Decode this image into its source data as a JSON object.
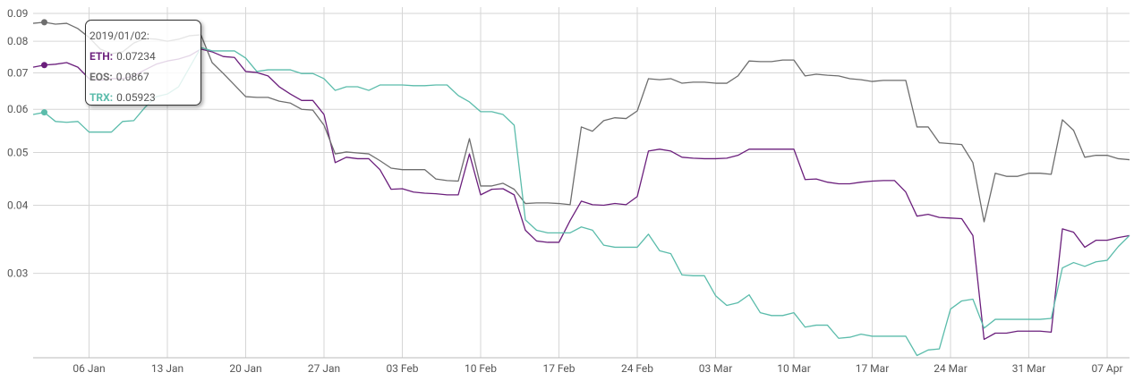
{
  "chart_data": {
    "type": "line",
    "log_scale": true,
    "grid": true,
    "x": [
      "2019/01/01",
      "2019/01/02",
      "2019/01/03",
      "2019/01/04",
      "2019/01/05",
      "2019/01/06",
      "2019/01/07",
      "2019/01/08",
      "2019/01/09",
      "2019/01/10",
      "2019/01/11",
      "2019/01/12",
      "2019/01/13",
      "2019/01/14",
      "2019/01/15",
      "2019/01/16",
      "2019/01/17",
      "2019/01/18",
      "2019/01/19",
      "2019/01/20",
      "2019/01/21",
      "2019/01/22",
      "2019/01/23",
      "2019/01/24",
      "2019/01/25",
      "2019/01/26",
      "2019/01/27",
      "2019/01/28",
      "2019/01/29",
      "2019/01/30",
      "2019/01/31",
      "2019/02/01",
      "2019/02/02",
      "2019/02/03",
      "2019/02/04",
      "2019/02/05",
      "2019/02/06",
      "2019/02/07",
      "2019/02/08",
      "2019/02/09",
      "2019/02/10",
      "2019/02/11",
      "2019/02/12",
      "2019/02/13",
      "2019/02/14",
      "2019/02/15",
      "2019/02/16",
      "2019/02/17",
      "2019/02/18",
      "2019/02/19",
      "2019/02/20",
      "2019/02/21",
      "2019/02/22",
      "2019/02/23",
      "2019/02/24",
      "2019/02/25",
      "2019/02/26",
      "2019/02/27",
      "2019/02/28",
      "2019/03/01",
      "2019/03/02",
      "2019/03/03",
      "2019/03/04",
      "2019/03/05",
      "2019/03/06",
      "2019/03/07",
      "2019/03/08",
      "2019/03/09",
      "2019/03/10",
      "2019/03/11",
      "2019/03/12",
      "2019/03/13",
      "2019/03/14",
      "2019/03/15",
      "2019/03/16",
      "2019/03/17",
      "2019/03/18",
      "2019/03/19",
      "2019/03/20",
      "2019/03/21",
      "2019/03/22",
      "2019/03/23",
      "2019/03/24",
      "2019/03/25",
      "2019/03/26",
      "2019/03/27",
      "2019/03/28",
      "2019/03/29",
      "2019/03/30",
      "2019/03/31",
      "2019/04/01",
      "2019/04/02",
      "2019/04/03",
      "2019/04/04",
      "2019/04/05",
      "2019/04/06",
      "2019/04/07",
      "2019/04/08",
      "2019/04/09"
    ],
    "xticks": [
      {
        "value": "2019/01/06",
        "label": "06 Jan"
      },
      {
        "value": "2019/01/13",
        "label": "13 Jan"
      },
      {
        "value": "2019/01/20",
        "label": "20 Jan"
      },
      {
        "value": "2019/01/27",
        "label": "27 Jan"
      },
      {
        "value": "2019/02/03",
        "label": "03 Feb"
      },
      {
        "value": "2019/02/10",
        "label": "10 Feb"
      },
      {
        "value": "2019/02/17",
        "label": "17 Feb"
      },
      {
        "value": "2019/02/24",
        "label": "24 Feb"
      },
      {
        "value": "2019/03/03",
        "label": "03 Mar"
      },
      {
        "value": "2019/03/10",
        "label": "10 Mar"
      },
      {
        "value": "2019/03/17",
        "label": "17 Mar"
      },
      {
        "value": "2019/03/24",
        "label": "24 Mar"
      },
      {
        "value": "2019/03/31",
        "label": "31 Mar"
      },
      {
        "value": "2019/04/07",
        "label": "07 Apr"
      }
    ],
    "ylim": [
      0.021,
      0.0924
    ],
    "yticks": [
      0.03,
      0.04,
      0.05,
      0.06,
      0.07,
      0.08,
      0.09
    ],
    "series": [
      {
        "color": "#6b1f7c",
        "values": [
          0.0717,
          0.07234,
          0.0726,
          0.0731,
          0.0717,
          0.0683,
          0.0678,
          0.0683,
          0.0683,
          0.0691,
          0.0709,
          0.0726,
          0.0736,
          0.0742,
          0.0753,
          0.0774,
          0.0765,
          0.075,
          0.0747,
          0.0704,
          0.0701,
          0.0691,
          0.066,
          0.064,
          0.0623,
          0.0623,
          0.0587,
          0.0479,
          0.049,
          0.0487,
          0.0487,
          0.0465,
          0.0428,
          0.0429,
          0.0423,
          0.0421,
          0.042,
          0.0418,
          0.0418,
          0.0497,
          0.0418,
          0.0428,
          0.0429,
          0.0418,
          0.036,
          0.0344,
          0.0342,
          0.0342,
          0.0375,
          0.0407,
          0.0401,
          0.04,
          0.0403,
          0.0401,
          0.0415,
          0.0503,
          0.0507,
          0.0503,
          0.049,
          0.0488,
          0.0487,
          0.0487,
          0.0488,
          0.0494,
          0.0507,
          0.0507,
          0.0507,
          0.0507,
          0.0507,
          0.0446,
          0.0447,
          0.0441,
          0.0438,
          0.0438,
          0.0441,
          0.0443,
          0.0444,
          0.0444,
          0.0423,
          0.0382,
          0.0385,
          0.038,
          0.0379,
          0.0378,
          0.0352,
          0.0227,
          0.0233,
          0.0233,
          0.0235,
          0.0235,
          0.0235,
          0.0234,
          0.0362,
          0.0357,
          0.0335,
          0.0345,
          0.0345,
          0.0349,
          0.0352
        ]
      },
      {
        "color": "#6e6e6e",
        "values": [
          0.0863,
          0.0867,
          0.086,
          0.0863,
          0.0844,
          0.0813,
          0.0774,
          0.0759,
          0.0765,
          0.0794,
          0.081,
          0.0807,
          0.08,
          0.0807,
          0.0819,
          0.0822,
          0.0731,
          0.0698,
          0.0665,
          0.0633,
          0.0631,
          0.0631,
          0.0621,
          0.0616,
          0.06,
          0.0598,
          0.0561,
          0.0497,
          0.0501,
          0.0499,
          0.0497,
          0.0483,
          0.0468,
          0.0465,
          0.0465,
          0.0465,
          0.0447,
          0.0444,
          0.0443,
          0.053,
          0.0434,
          0.0434,
          0.0439,
          0.0428,
          0.0403,
          0.0404,
          0.0404,
          0.0403,
          0.0401,
          0.0557,
          0.0547,
          0.0572,
          0.0579,
          0.0577,
          0.0596,
          0.0683,
          0.068,
          0.0683,
          0.067,
          0.0673,
          0.0673,
          0.067,
          0.067,
          0.0691,
          0.0736,
          0.0734,
          0.0734,
          0.0739,
          0.0739,
          0.0691,
          0.0696,
          0.0693,
          0.0691,
          0.0683,
          0.068,
          0.0675,
          0.0678,
          0.0678,
          0.0678,
          0.0557,
          0.0557,
          0.0521,
          0.0519,
          0.0517,
          0.0479,
          0.0373,
          0.0458,
          0.0452,
          0.0452,
          0.0458,
          0.0458,
          0.0456,
          0.0574,
          0.0549,
          0.049,
          0.0494,
          0.0494,
          0.0487,
          0.0485
        ]
      },
      {
        "color": "#5bbcab",
        "values": [
          0.0587,
          0.05923,
          0.057,
          0.0568,
          0.057,
          0.0545,
          0.0545,
          0.0545,
          0.057,
          0.0572,
          0.0605,
          0.0633,
          0.064,
          0.066,
          0.0717,
          0.0779,
          0.0768,
          0.0768,
          0.0768,
          0.0745,
          0.0704,
          0.0709,
          0.0709,
          0.0709,
          0.0698,
          0.0698,
          0.0683,
          0.065,
          0.066,
          0.066,
          0.065,
          0.0665,
          0.0665,
          0.0665,
          0.0663,
          0.0663,
          0.0665,
          0.0665,
          0.0636,
          0.0619,
          0.0594,
          0.0594,
          0.0587,
          0.0561,
          0.0376,
          0.036,
          0.0356,
          0.0356,
          0.0356,
          0.0365,
          0.036,
          0.0338,
          0.0335,
          0.0335,
          0.0335,
          0.0354,
          0.033,
          0.0326,
          0.0298,
          0.0297,
          0.0297,
          0.0273,
          0.0262,
          0.0265,
          0.0274,
          0.0254,
          0.0251,
          0.0251,
          0.0254,
          0.0239,
          0.0241,
          0.0241,
          0.0228,
          0.0229,
          0.0232,
          0.023,
          0.023,
          0.023,
          0.023,
          0.0212,
          0.0217,
          0.0218,
          0.0258,
          0.0267,
          0.0269,
          0.0238,
          0.0247,
          0.0247,
          0.0247,
          0.0247,
          0.0247,
          0.0248,
          0.0307,
          0.0314,
          0.0309,
          0.0315,
          0.0317,
          0.0336,
          0.0352
        ]
      }
    ],
    "tooltip": {
      "title": "2019/01/02:",
      "labels": [
        "ETH:",
        "EOS:",
        "TRX:"
      ]
    }
  }
}
